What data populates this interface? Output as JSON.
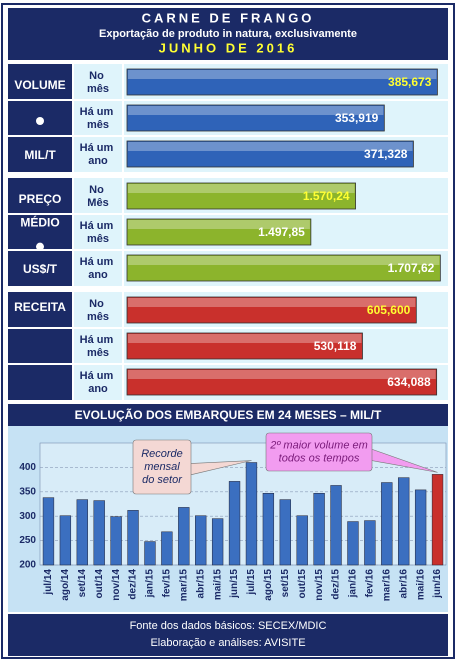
{
  "header": {
    "title": "CARNE DE FRANGO",
    "subtitle": "Exportação de produto in natura, exclusivamente",
    "date": "JUNHO DE 2016"
  },
  "chart_data": [
    {
      "type": "hbar",
      "label_lines": [
        "VOLUME",
        "MIL/T"
      ],
      "categories": [
        "No mês",
        "Há um mês",
        "Há um ano"
      ],
      "values": [
        385.673,
        353.919,
        371.328
      ],
      "value_labels": [
        "385,673",
        "353,919",
        "371,328"
      ],
      "color": "#2f63b8",
      "highlight_label_color": "#ffff33",
      "xlim": [
        200,
        392
      ]
    },
    {
      "type": "hbar",
      "label_lines": [
        "PREÇO",
        "MÉDIO",
        "US$/T"
      ],
      "categories": [
        "No Mês",
        "Há um mês",
        "Há um ano"
      ],
      "values": [
        1570.24,
        1497.85,
        1707.62
      ],
      "value_labels": [
        "1.570,24",
        "1.497,85",
        "1.707,62"
      ],
      "color": "#8cb42c",
      "highlight_label_color": "#ffff33",
      "xlim": [
        1200,
        1720
      ]
    },
    {
      "type": "hbar",
      "label_lines": [
        "RECEITA"
      ],
      "categories": [
        "No mês",
        "Há um mês",
        "Há um ano"
      ],
      "values": [
        605.6,
        530.118,
        634.088
      ],
      "value_labels": [
        "605,600",
        "530,118",
        "634,088"
      ],
      "color": "#c9302c",
      "highlight_label_color": "#ffff33",
      "xlim": [
        200,
        650
      ]
    },
    {
      "type": "bar",
      "title": "EVOLUÇÃO DOS EMBARQUES EM 24 MESES – MIL/T",
      "categories": [
        "jul/14",
        "ago/14",
        "set/14",
        "out/14",
        "nov/14",
        "dez/14",
        "jan/15",
        "fev/15",
        "mar/15",
        "abr/15",
        "mai/15",
        "jun/15",
        "jul/15",
        "ago/15",
        "set/15",
        "out/15",
        "nov/15",
        "dez/15",
        "jan/16",
        "fev/16",
        "mar/16",
        "abr/16",
        "mai/16",
        "jun/16"
      ],
      "values": [
        338,
        301,
        334,
        332,
        299,
        312,
        248,
        268,
        318,
        301,
        295,
        371.328,
        410,
        347,
        334,
        301,
        347,
        363,
        289,
        291,
        369,
        379,
        353.919,
        385.673
      ],
      "bar_colors": [
        "#3b6fc0",
        "#3b6fc0",
        "#3b6fc0",
        "#3b6fc0",
        "#3b6fc0",
        "#3b6fc0",
        "#3b6fc0",
        "#3b6fc0",
        "#3b6fc0",
        "#3b6fc0",
        "#3b6fc0",
        "#3b6fc0",
        "#3b6fc0",
        "#3b6fc0",
        "#3b6fc0",
        "#3b6fc0",
        "#3b6fc0",
        "#3b6fc0",
        "#3b6fc0",
        "#3b6fc0",
        "#3b6fc0",
        "#3b6fc0",
        "#3b6fc0",
        "#c9302c"
      ],
      "ylim": [
        200,
        450
      ],
      "yticks": [
        200,
        250,
        300,
        350,
        400
      ],
      "grid": true,
      "annotations": [
        [
          "Recorde",
          "mensal",
          "do setor"
        ],
        [
          "2º maior volume em",
          "todos os tempos"
        ]
      ]
    }
  ],
  "footer": {
    "lines": [
      "Fonte dos dados básicos: SECEX/MDIC",
      "Elaboração e análises: AVISITE"
    ]
  }
}
